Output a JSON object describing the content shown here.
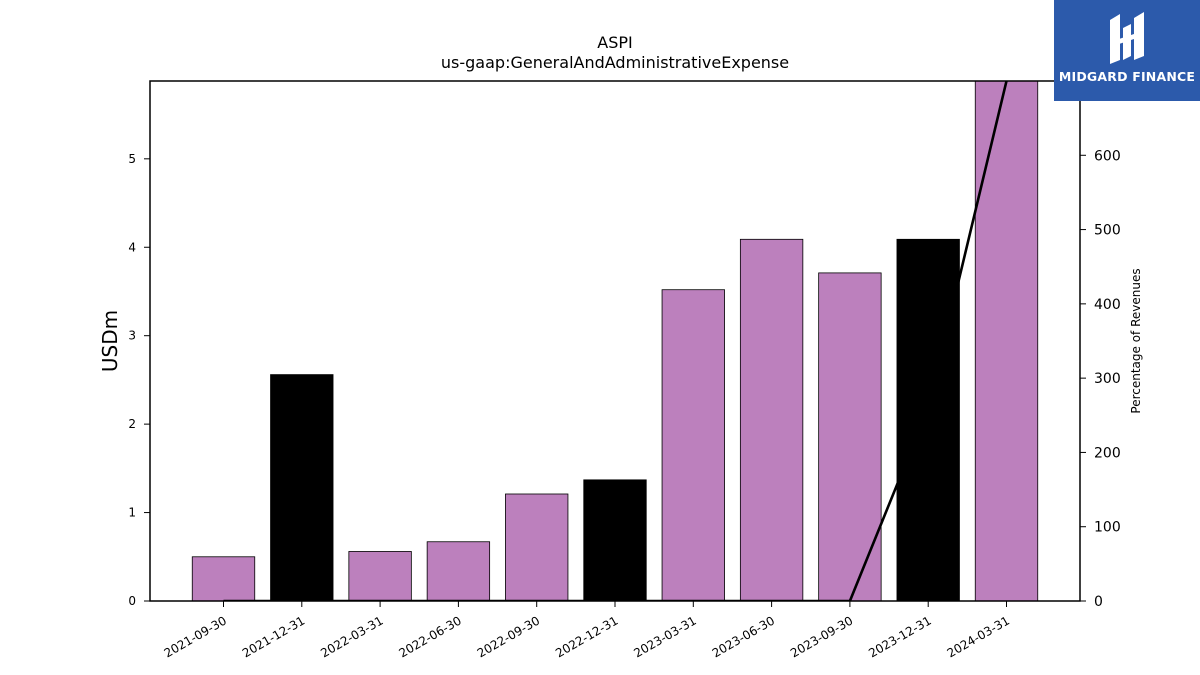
{
  "chart_data": {
    "type": "bar",
    "title": "ASPI",
    "subtitle": "us-gaap:GeneralAndAdministrativeExpense",
    "ylabel": "USDm",
    "y2label": "Percentage of Revenues",
    "categories": [
      "2021-09-30",
      "2021-12-31",
      "2022-03-31",
      "2022-06-30",
      "2022-09-30",
      "2022-12-31",
      "2023-03-31",
      "2023-06-30",
      "2023-09-30",
      "2023-12-31",
      "2024-03-31"
    ],
    "values": [
      0.5,
      2.56,
      0.56,
      0.67,
      1.21,
      1.37,
      3.52,
      4.09,
      3.71,
      4.09,
      5.9
    ],
    "bar_colors": [
      "#bc80bd",
      "#000000",
      "#bc80bd",
      "#bc80bd",
      "#bc80bd",
      "#000000",
      "#bc80bd",
      "#bc80bd",
      "#bc80bd",
      "#000000",
      "#bc80bd"
    ],
    "ylim": [
      0,
      5.88
    ],
    "yticks": [
      0,
      1,
      2,
      3,
      4,
      5
    ],
    "y2lim": [
      0,
      700
    ],
    "y2ticks": [
      0,
      100,
      200,
      300,
      400,
      500,
      600
    ],
    "line": {
      "name": "Percentage of Revenues",
      "color": "#000000",
      "values": [
        0,
        0,
        0,
        0,
        0,
        0,
        0,
        0,
        0,
        260,
        700
      ]
    },
    "grid": false,
    "legend": "none"
  },
  "logo": {
    "text": "MIDGARD FINANCE",
    "color": "#2c5aab"
  }
}
